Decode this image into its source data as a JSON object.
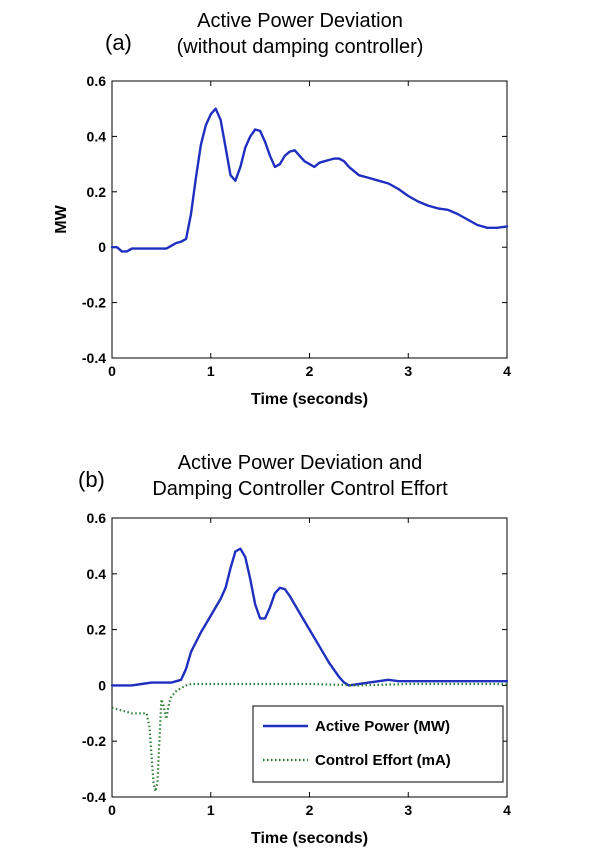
{
  "chart_data": [
    {
      "panel_label": "(a)",
      "title_line1": "Active Power Deviation",
      "title_line2": "(without damping controller)",
      "type": "line",
      "xlabel": "Time (seconds)",
      "ylabel": "MW",
      "xlim": [
        0,
        4
      ],
      "ylim": [
        -0.4,
        0.6
      ],
      "xticks": [
        "0",
        "1",
        "2",
        "3",
        "4"
      ],
      "yticks": [
        "-0.4",
        "-0.2",
        "0",
        "0.2",
        "0.4",
        "0.6"
      ],
      "grid": false,
      "series": [
        {
          "color": "#1f2fbf",
          "style": "solid",
          "x": [
            0,
            0.05,
            0.1,
            0.15,
            0.2,
            0.3,
            0.4,
            0.5,
            0.55,
            0.6,
            0.65,
            0.7,
            0.75,
            0.8,
            0.85,
            0.9,
            0.95,
            1.0,
            1.05,
            1.1,
            1.15,
            1.2,
            1.25,
            1.3,
            1.35,
            1.4,
            1.45,
            1.5,
            1.55,
            1.6,
            1.65,
            1.7,
            1.75,
            1.8,
            1.85,
            1.9,
            1.95,
            2.0,
            2.05,
            2.1,
            2.15,
            2.2,
            2.25,
            2.3,
            2.35,
            2.4,
            2.5,
            2.6,
            2.7,
            2.8,
            2.9,
            3.0,
            3.1,
            3.2,
            3.3,
            3.4,
            3.5,
            3.6,
            3.7,
            3.75,
            3.8,
            3.9,
            4.0
          ],
          "y": [
            0.0,
            0.0,
            -0.015,
            -0.015,
            -0.005,
            -0.005,
            -0.005,
            -0.005,
            -0.005,
            0.005,
            0.015,
            0.02,
            0.03,
            0.12,
            0.25,
            0.37,
            0.44,
            0.48,
            0.5,
            0.46,
            0.36,
            0.26,
            0.24,
            0.29,
            0.36,
            0.4,
            0.425,
            0.42,
            0.38,
            0.33,
            0.29,
            0.3,
            0.33,
            0.345,
            0.35,
            0.33,
            0.31,
            0.3,
            0.29,
            0.305,
            0.31,
            0.315,
            0.32,
            0.32,
            0.31,
            0.29,
            0.26,
            0.25,
            0.24,
            0.23,
            0.21,
            0.185,
            0.165,
            0.15,
            0.14,
            0.135,
            0.12,
            0.1,
            0.08,
            0.075,
            0.07,
            0.07,
            0.075
          ]
        }
      ]
    },
    {
      "panel_label": "(b)",
      "title_line1": "Active Power Deviation and",
      "title_line2": "Damping Controller Control Effort",
      "type": "line",
      "xlabel": "Time (seconds)",
      "ylabel": "",
      "xlim": [
        0,
        4
      ],
      "ylim": [
        -0.4,
        0.6
      ],
      "xticks": [
        "0",
        "1",
        "2",
        "3",
        "4"
      ],
      "yticks": [
        "-0.4",
        "-0.2",
        "0",
        "0.2",
        "0.4",
        "0.6"
      ],
      "grid": false,
      "legend_position": "bottom-right",
      "series": [
        {
          "name": "Active Power (MW)",
          "color": "#1f2fbf",
          "style": "solid",
          "x": [
            0,
            0.1,
            0.2,
            0.3,
            0.4,
            0.5,
            0.6,
            0.65,
            0.7,
            0.75,
            0.8,
            0.9,
            1.0,
            1.1,
            1.15,
            1.2,
            1.25,
            1.3,
            1.35,
            1.4,
            1.45,
            1.5,
            1.55,
            1.6,
            1.65,
            1.7,
            1.75,
            1.8,
            1.9,
            2.0,
            2.1,
            2.2,
            2.3,
            2.35,
            2.4,
            2.5,
            2.6,
            2.7,
            2.8,
            2.9,
            3.0,
            3.2,
            3.4,
            3.6,
            3.8,
            4.0
          ],
          "y": [
            0.0,
            0.0,
            0.0,
            0.005,
            0.01,
            0.01,
            0.01,
            0.015,
            0.02,
            0.06,
            0.12,
            0.19,
            0.25,
            0.31,
            0.35,
            0.42,
            0.48,
            0.49,
            0.46,
            0.38,
            0.29,
            0.24,
            0.24,
            0.28,
            0.33,
            0.35,
            0.345,
            0.32,
            0.26,
            0.2,
            0.14,
            0.08,
            0.03,
            0.01,
            0.0,
            0.005,
            0.01,
            0.015,
            0.02,
            0.015,
            0.015,
            0.015,
            0.015,
            0.015,
            0.015,
            0.015
          ]
        },
        {
          "name": "Control Effort (mA)",
          "color": "#2e7d32",
          "style": "dotted",
          "x": [
            0,
            0.1,
            0.2,
            0.3,
            0.35,
            0.38,
            0.4,
            0.42,
            0.44,
            0.46,
            0.48,
            0.5,
            0.52,
            0.55,
            0.58,
            0.6,
            0.65,
            0.7,
            0.75,
            0.8,
            1.0,
            1.5,
            2.0,
            2.5,
            3.0,
            3.5,
            4.0
          ],
          "y": [
            -0.08,
            -0.09,
            -0.1,
            -0.1,
            -0.1,
            -0.15,
            -0.25,
            -0.35,
            -0.38,
            -0.35,
            -0.2,
            -0.05,
            -0.07,
            -0.12,
            -0.06,
            -0.04,
            -0.02,
            -0.01,
            0.0,
            0.005,
            0.005,
            0.005,
            0.005,
            0.0,
            0.005,
            0.005,
            0.005
          ]
        }
      ]
    }
  ]
}
